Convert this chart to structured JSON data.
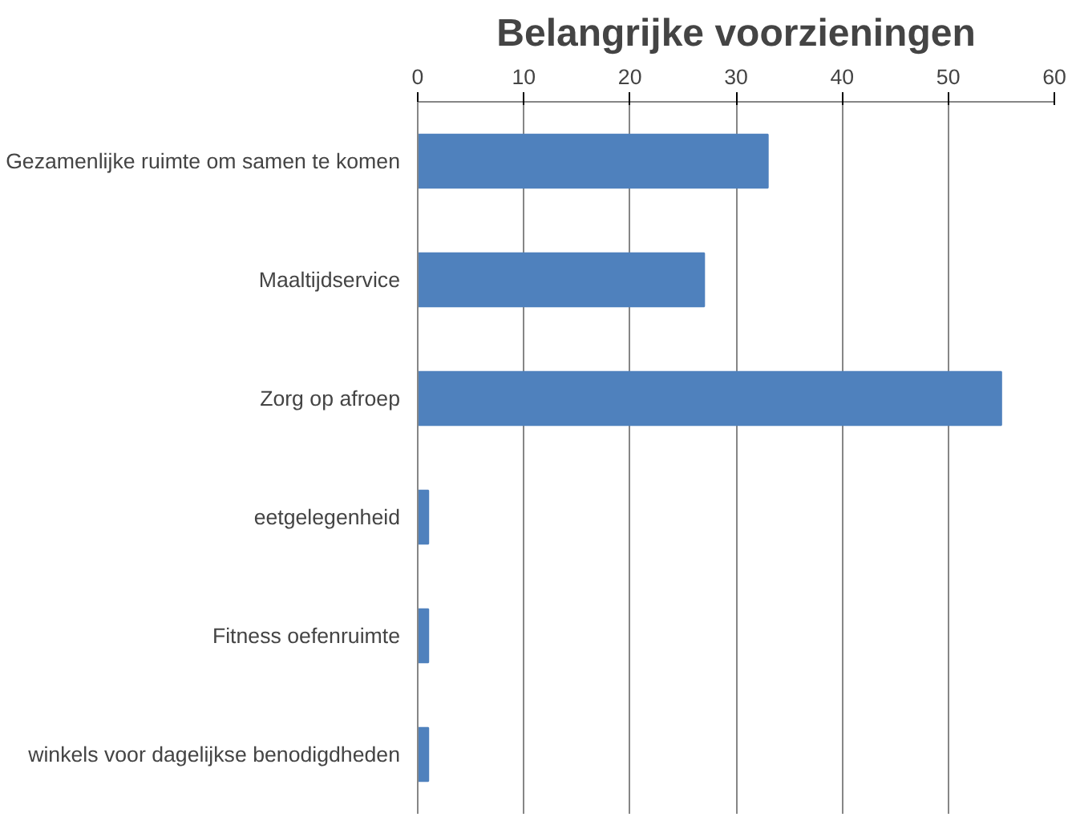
{
  "chart_data": {
    "type": "bar",
    "orientation": "horizontal",
    "title": "Belangrijke voorzieningen",
    "categories": [
      "Gezamenlijke ruimte om samen te komen",
      "Maaltijdservice",
      "Zorg op afroep",
      "eetgelegenheid",
      "Fitness oefenruimte",
      "winkels voor dagelijkse benodigdheden"
    ],
    "values": [
      33,
      27,
      55,
      1,
      1,
      1
    ],
    "color": "#4f81bd",
    "xlim": [
      0,
      60
    ],
    "xticks": [
      0,
      10,
      20,
      30,
      40,
      50,
      60
    ],
    "grid": "x"
  }
}
